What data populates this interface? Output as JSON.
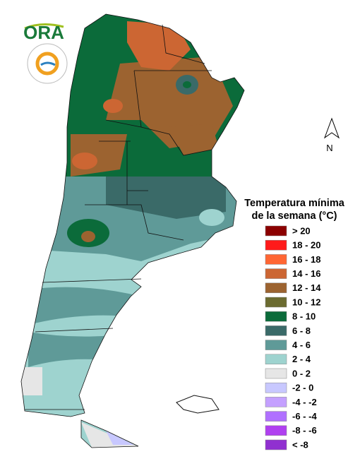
{
  "logo": {
    "text": "ORA"
  },
  "north": "N",
  "legend": {
    "title": [
      "Temperatura mínima",
      "de la semana (°C)"
    ],
    "items": [
      {
        "label": "> 20",
        "color": "#8b0000"
      },
      {
        "label": "18 - 20",
        "color": "#ff1a1a"
      },
      {
        "label": "16 - 18",
        "color": "#ff6633"
      },
      {
        "label": "14 - 16",
        "color": "#cc6633"
      },
      {
        "label": "12 - 14",
        "color": "#9c6330"
      },
      {
        "label": "10 - 12",
        "color": "#6b6b30"
      },
      {
        "label": "8 - 10",
        "color": "#0b6b3a"
      },
      {
        "label": "6 - 8",
        "color": "#3a6a68"
      },
      {
        "label": "4 - 6",
        "color": "#5f9a98"
      },
      {
        "label": "2 - 4",
        "color": "#9ed3cf"
      },
      {
        "label": "0 - 2",
        "color": "#e6e6e6"
      },
      {
        "label": "-2 - 0",
        "color": "#c8c8ff"
      },
      {
        "label": "-4 - -2",
        "color": "#c4a0ff"
      },
      {
        "label": "-6 - -4",
        "color": "#b070ff"
      },
      {
        "label": "-8 - -6",
        "color": "#b040f0"
      },
      {
        "label": "< -8",
        "color": "#9030d0"
      }
    ]
  }
}
